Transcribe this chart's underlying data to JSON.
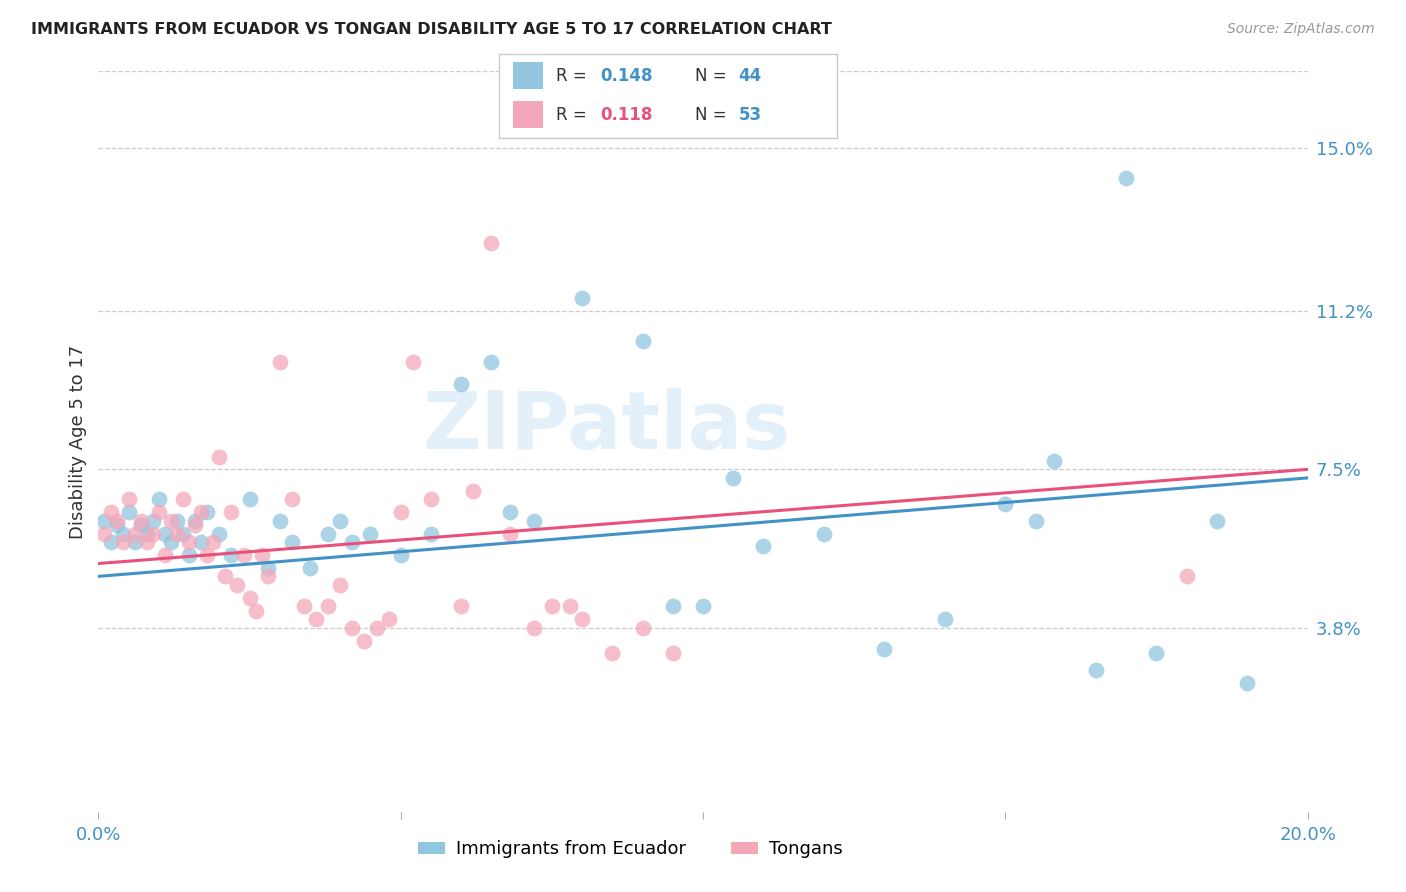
{
  "title": "IMMIGRANTS FROM ECUADOR VS TONGAN DISABILITY AGE 5 TO 17 CORRELATION CHART",
  "source": "Source: ZipAtlas.com",
  "ylabel": "Disability Age 5 to 17",
  "xlim": [
    0.0,
    0.2
  ],
  "ylim": [
    -0.005,
    0.168
  ],
  "ytick_positions": [
    0.038,
    0.075,
    0.112,
    0.15
  ],
  "ytick_labels": [
    "3.8%",
    "7.5%",
    "11.2%",
    "15.0%"
  ],
  "color_blue": "#92c5de",
  "color_pink": "#f4a7b9",
  "color_blue_text": "#4292c6",
  "color_pink_text": "#e8527a",
  "color_line_blue": "#4292c6",
  "color_line_pink": "#e8527a",
  "watermark": "ZIPatlas",
  "blue_scatter": [
    [
      0.001,
      0.063
    ],
    [
      0.002,
      0.058
    ],
    [
      0.003,
      0.062
    ],
    [
      0.004,
      0.06
    ],
    [
      0.005,
      0.065
    ],
    [
      0.006,
      0.058
    ],
    [
      0.007,
      0.062
    ],
    [
      0.008,
      0.06
    ],
    [
      0.009,
      0.063
    ],
    [
      0.01,
      0.068
    ],
    [
      0.011,
      0.06
    ],
    [
      0.012,
      0.058
    ],
    [
      0.013,
      0.063
    ],
    [
      0.014,
      0.06
    ],
    [
      0.015,
      0.055
    ],
    [
      0.016,
      0.063
    ],
    [
      0.017,
      0.058
    ],
    [
      0.018,
      0.065
    ],
    [
      0.02,
      0.06
    ],
    [
      0.022,
      0.055
    ],
    [
      0.025,
      0.068
    ],
    [
      0.028,
      0.052
    ],
    [
      0.03,
      0.063
    ],
    [
      0.032,
      0.058
    ],
    [
      0.035,
      0.052
    ],
    [
      0.038,
      0.06
    ],
    [
      0.04,
      0.063
    ],
    [
      0.042,
      0.058
    ],
    [
      0.045,
      0.06
    ],
    [
      0.05,
      0.055
    ],
    [
      0.055,
      0.06
    ],
    [
      0.06,
      0.095
    ],
    [
      0.065,
      0.1
    ],
    [
      0.068,
      0.065
    ],
    [
      0.072,
      0.063
    ],
    [
      0.08,
      0.115
    ],
    [
      0.09,
      0.105
    ],
    [
      0.095,
      0.043
    ],
    [
      0.1,
      0.043
    ],
    [
      0.105,
      0.073
    ],
    [
      0.11,
      0.057
    ],
    [
      0.12,
      0.06
    ],
    [
      0.13,
      0.033
    ],
    [
      0.14,
      0.04
    ],
    [
      0.15,
      0.067
    ],
    [
      0.155,
      0.063
    ],
    [
      0.158,
      0.077
    ],
    [
      0.165,
      0.028
    ],
    [
      0.17,
      0.143
    ],
    [
      0.175,
      0.032
    ],
    [
      0.185,
      0.063
    ],
    [
      0.19,
      0.025
    ]
  ],
  "pink_scatter": [
    [
      0.001,
      0.06
    ],
    [
      0.002,
      0.065
    ],
    [
      0.003,
      0.063
    ],
    [
      0.004,
      0.058
    ],
    [
      0.005,
      0.068
    ],
    [
      0.006,
      0.06
    ],
    [
      0.007,
      0.063
    ],
    [
      0.008,
      0.058
    ],
    [
      0.009,
      0.06
    ],
    [
      0.01,
      0.065
    ],
    [
      0.011,
      0.055
    ],
    [
      0.012,
      0.063
    ],
    [
      0.013,
      0.06
    ],
    [
      0.014,
      0.068
    ],
    [
      0.015,
      0.058
    ],
    [
      0.016,
      0.062
    ],
    [
      0.017,
      0.065
    ],
    [
      0.018,
      0.055
    ],
    [
      0.019,
      0.058
    ],
    [
      0.02,
      0.078
    ],
    [
      0.021,
      0.05
    ],
    [
      0.022,
      0.065
    ],
    [
      0.023,
      0.048
    ],
    [
      0.024,
      0.055
    ],
    [
      0.025,
      0.045
    ],
    [
      0.026,
      0.042
    ],
    [
      0.027,
      0.055
    ],
    [
      0.028,
      0.05
    ],
    [
      0.03,
      0.1
    ],
    [
      0.032,
      0.068
    ],
    [
      0.034,
      0.043
    ],
    [
      0.036,
      0.04
    ],
    [
      0.038,
      0.043
    ],
    [
      0.04,
      0.048
    ],
    [
      0.042,
      0.038
    ],
    [
      0.044,
      0.035
    ],
    [
      0.046,
      0.038
    ],
    [
      0.048,
      0.04
    ],
    [
      0.05,
      0.065
    ],
    [
      0.052,
      0.1
    ],
    [
      0.055,
      0.068
    ],
    [
      0.06,
      0.043
    ],
    [
      0.062,
      0.07
    ],
    [
      0.065,
      0.128
    ],
    [
      0.068,
      0.06
    ],
    [
      0.072,
      0.038
    ],
    [
      0.075,
      0.043
    ],
    [
      0.078,
      0.043
    ],
    [
      0.08,
      0.04
    ],
    [
      0.085,
      0.032
    ],
    [
      0.09,
      0.038
    ],
    [
      0.095,
      0.032
    ],
    [
      0.18,
      0.05
    ]
  ]
}
